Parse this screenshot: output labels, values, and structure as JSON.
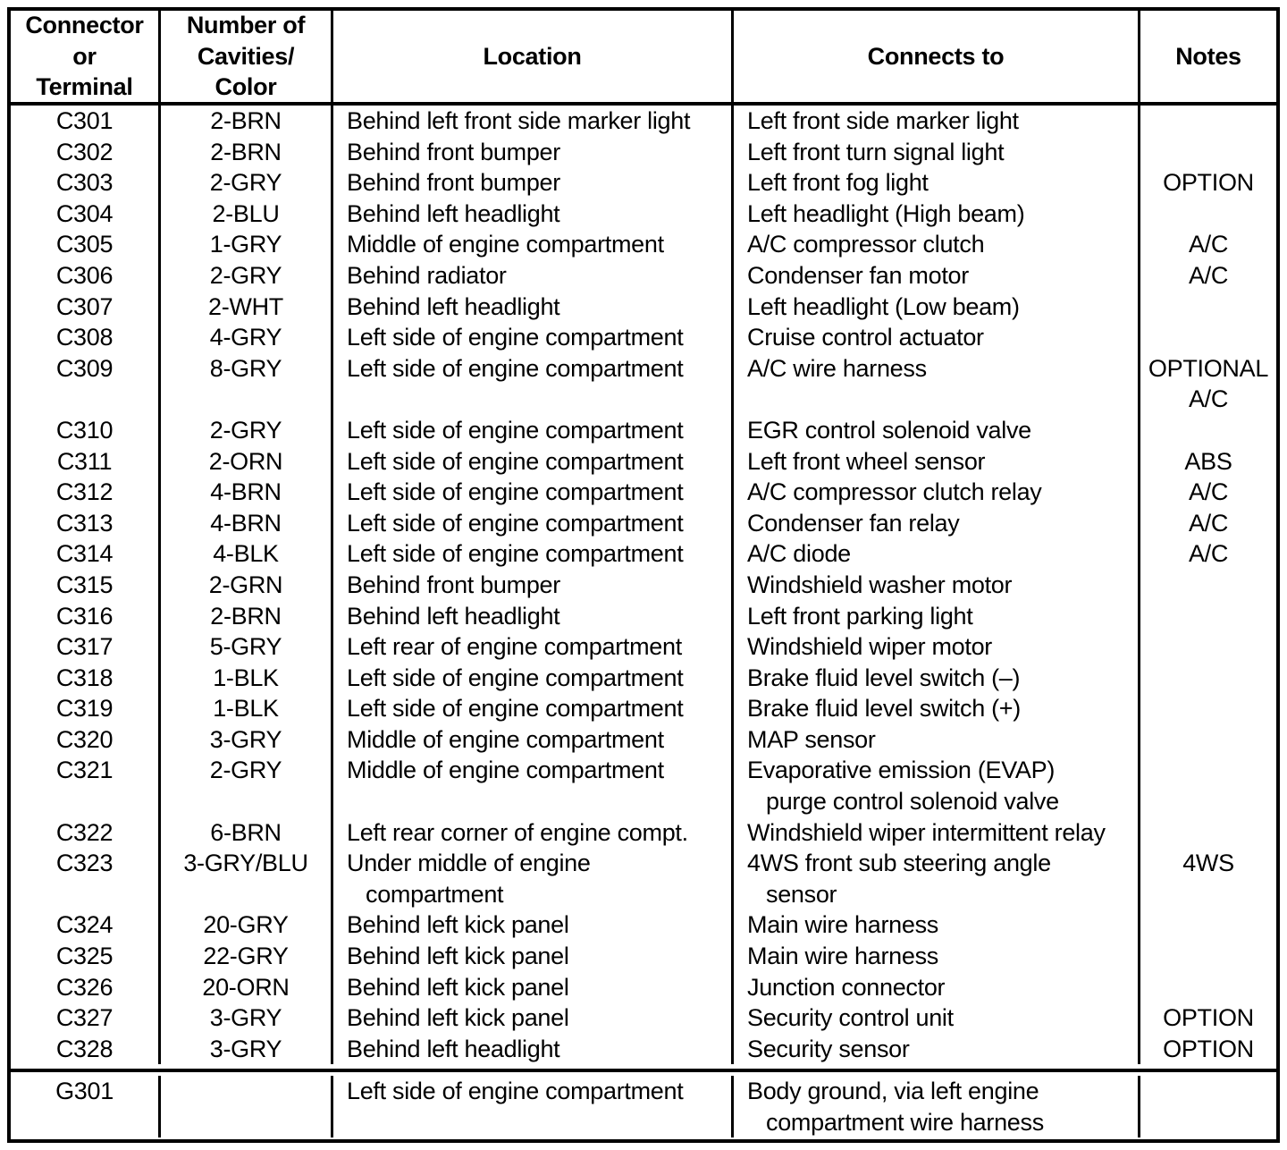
{
  "page": {
    "background_color": "#ffffff",
    "text_color": "#000000",
    "border_color": "#000000"
  },
  "table": {
    "headers": {
      "connector": [
        "Connector",
        "or",
        "Terminal"
      ],
      "cavities": [
        "Number of",
        "Cavities/",
        "Color"
      ],
      "location": [
        "Location"
      ],
      "connects_to": [
        "Connects to"
      ],
      "notes": [
        "Notes"
      ]
    },
    "rows": [
      {
        "connector": "C301",
        "cavities": "2-BRN",
        "location": [
          "Behind left front side marker light"
        ],
        "connects_to": [
          "Left front side marker light"
        ],
        "notes": []
      },
      {
        "connector": "C302",
        "cavities": "2-BRN",
        "location": [
          "Behind front bumper"
        ],
        "connects_to": [
          "Left front turn signal light"
        ],
        "notes": []
      },
      {
        "connector": "C303",
        "cavities": "2-GRY",
        "location": [
          "Behind front bumper"
        ],
        "connects_to": [
          "Left front fog light"
        ],
        "notes": [
          "OPTION"
        ]
      },
      {
        "connector": "C304",
        "cavities": "2-BLU",
        "location": [
          "Behind left headlight"
        ],
        "connects_to": [
          "Left headlight (High beam)"
        ],
        "notes": []
      },
      {
        "connector": "C305",
        "cavities": "1-GRY",
        "location": [
          "Middle of engine compartment"
        ],
        "connects_to": [
          "A/C compressor clutch"
        ],
        "notes": [
          "A/C"
        ]
      },
      {
        "connector": "C306",
        "cavities": "2-GRY",
        "location": [
          "Behind radiator"
        ],
        "connects_to": [
          "Condenser fan motor"
        ],
        "notes": [
          "A/C"
        ]
      },
      {
        "connector": "C307",
        "cavities": "2-WHT",
        "location": [
          "Behind left headlight"
        ],
        "connects_to": [
          "Left headlight (Low beam)"
        ],
        "notes": []
      },
      {
        "connector": "C308",
        "cavities": "4-GRY",
        "location": [
          "Left side of engine compartment"
        ],
        "connects_to": [
          "Cruise control actuator"
        ],
        "notes": []
      },
      {
        "connector": "C309",
        "cavities": "8-GRY",
        "location": [
          "Left side of engine compartment"
        ],
        "connects_to": [
          "A/C wire harness"
        ],
        "notes": [
          "OPTIONAL",
          "A/C"
        ]
      },
      {
        "connector": "C310",
        "cavities": "2-GRY",
        "location": [
          "Left side of engine compartment"
        ],
        "connects_to": [
          "EGR control solenoid valve"
        ],
        "notes": []
      },
      {
        "connector": "C311",
        "cavities": "2-ORN",
        "location": [
          "Left side of engine compartment"
        ],
        "connects_to": [
          "Left front wheel sensor"
        ],
        "notes": [
          "ABS"
        ]
      },
      {
        "connector": "C312",
        "cavities": "4-BRN",
        "location": [
          "Left side of engine compartment"
        ],
        "connects_to": [
          "A/C compressor clutch relay"
        ],
        "notes": [
          "A/C"
        ]
      },
      {
        "connector": "C313",
        "cavities": "4-BRN",
        "location": [
          "Left side of engine compartment"
        ],
        "connects_to": [
          "Condenser fan relay"
        ],
        "notes": [
          "A/C"
        ]
      },
      {
        "connector": "C314",
        "cavities": "4-BLK",
        "location": [
          "Left side of engine compartment"
        ],
        "connects_to": [
          "A/C diode"
        ],
        "notes": [
          "A/C"
        ]
      },
      {
        "connector": "C315",
        "cavities": "2-GRN",
        "location": [
          "Behind front bumper"
        ],
        "connects_to": [
          "Windshield washer motor"
        ],
        "notes": []
      },
      {
        "connector": "C316",
        "cavities": "2-BRN",
        "location": [
          "Behind left headlight"
        ],
        "connects_to": [
          "Left front parking light"
        ],
        "notes": []
      },
      {
        "connector": "C317",
        "cavities": "5-GRY",
        "location": [
          "Left rear of engine compartment"
        ],
        "connects_to": [
          "Windshield wiper motor"
        ],
        "notes": []
      },
      {
        "connector": "C318",
        "cavities": "1-BLK",
        "location": [
          "Left side of engine compartment"
        ],
        "connects_to": [
          "Brake fluid level switch (–)"
        ],
        "notes": []
      },
      {
        "connector": "C319",
        "cavities": "1-BLK",
        "location": [
          "Left side of engine compartment"
        ],
        "connects_to": [
          "Brake fluid level switch (+)"
        ],
        "notes": []
      },
      {
        "connector": "C320",
        "cavities": "3-GRY",
        "location": [
          "Middle of engine compartment"
        ],
        "connects_to": [
          "MAP sensor"
        ],
        "notes": []
      },
      {
        "connector": "C321",
        "cavities": "2-GRY",
        "location": [
          "Middle of engine compartment"
        ],
        "connects_to": [
          "Evaporative emission (EVAP)",
          "purge control solenoid valve"
        ],
        "notes": []
      },
      {
        "connector": "C322",
        "cavities": "6-BRN",
        "location": [
          "Left rear corner of engine compt."
        ],
        "connects_to": [
          "Windshield wiper intermittent relay"
        ],
        "notes": []
      },
      {
        "connector": "C323",
        "cavities": "3-GRY/BLU",
        "location": [
          "Under middle of engine",
          "compartment"
        ],
        "connects_to": [
          "4WS front sub steering angle",
          "sensor"
        ],
        "notes": [
          "4WS"
        ]
      },
      {
        "connector": "C324",
        "cavities": "20-GRY",
        "location": [
          "Behind left kick panel"
        ],
        "connects_to": [
          "Main wire harness"
        ],
        "notes": []
      },
      {
        "connector": "C325",
        "cavities": "22-GRY",
        "location": [
          "Behind left kick panel"
        ],
        "connects_to": [
          "Main wire harness"
        ],
        "notes": []
      },
      {
        "connector": "C326",
        "cavities": "20-ORN",
        "location": [
          "Behind left kick panel"
        ],
        "connects_to": [
          "Junction connector"
        ],
        "notes": []
      },
      {
        "connector": "C327",
        "cavities": "3-GRY",
        "location": [
          "Behind left kick panel"
        ],
        "connects_to": [
          "Security control unit"
        ],
        "notes": [
          "OPTION"
        ]
      },
      {
        "connector": "C328",
        "cavities": "3-GRY",
        "location": [
          "Behind left headlight"
        ],
        "connects_to": [
          "Security sensor"
        ],
        "notes": [
          "OPTION"
        ]
      }
    ],
    "footer_rows": [
      {
        "connector": "G301",
        "cavities": "",
        "location": [
          "Left side of engine compartment"
        ],
        "connects_to": [
          "Body ground, via left engine",
          "compartment wire harness"
        ],
        "notes": []
      }
    ]
  }
}
